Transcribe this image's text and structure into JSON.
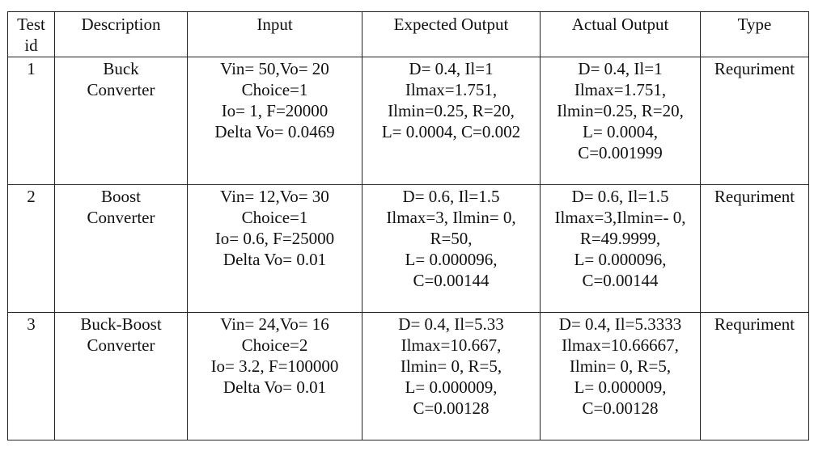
{
  "table": {
    "headers": [
      [
        "Test",
        "id"
      ],
      [
        "Description"
      ],
      [
        "Input"
      ],
      [
        "Expected Output"
      ],
      [
        "Actual Output"
      ],
      [
        "Type"
      ]
    ],
    "rows": [
      {
        "id": [
          "1"
        ],
        "description": [
          "Buck",
          "Converter"
        ],
        "input": [
          "Vin= 50,Vo= 20",
          "Choice=1",
          "Io= 1, F=20000",
          "Delta Vo= 0.0469"
        ],
        "expected": [
          "D= 0.4, Il=1",
          "Ilmax=1.751,",
          "Ilmin=0.25, R=20,",
          "L= 0.0004, C=0.002"
        ],
        "actual": [
          "D= 0.4, Il=1",
          "Ilmax=1.751,",
          "Ilmin=0.25, R=20,",
          "L= 0.0004,",
          "C=0.001999"
        ],
        "type": [
          "Requriment"
        ]
      },
      {
        "id": [
          "2"
        ],
        "description": [
          "Boost",
          "Converter"
        ],
        "input": [
          "Vin= 12,Vo= 30",
          "Choice=1",
          "Io= 0.6, F=25000",
          "Delta Vo= 0.01"
        ],
        "expected": [
          "D= 0.6, Il=1.5",
          "Ilmax=3, Ilmin= 0,",
          "R=50,",
          "L= 0.000096,",
          "C=0.00144"
        ],
        "actual": [
          "D= 0.6, Il=1.5",
          "Ilmax=3,Ilmin=- 0,",
          "R=49.9999,",
          "L= 0.000096,",
          "C=0.00144"
        ],
        "type": [
          "Requriment"
        ]
      },
      {
        "id": [
          "3"
        ],
        "description": [
          "Buck-Boost",
          "Converter"
        ],
        "input": [
          "Vin= 24,Vo= 16",
          "Choice=2",
          "Io= 3.2, F=100000",
          "Delta Vo= 0.01"
        ],
        "expected": [
          "D= 0.4, Il=5.33",
          "Ilmax=10.667,",
          "Ilmin= 0, R=5,",
          "L= 0.000009,",
          "C=0.00128"
        ],
        "actual": [
          "D= 0.4, Il=5.3333",
          "Ilmax=10.66667,",
          "Ilmin= 0, R=5,",
          "L= 0.000009,",
          "C=0.00128"
        ],
        "type": [
          "Requriment"
        ]
      }
    ]
  }
}
